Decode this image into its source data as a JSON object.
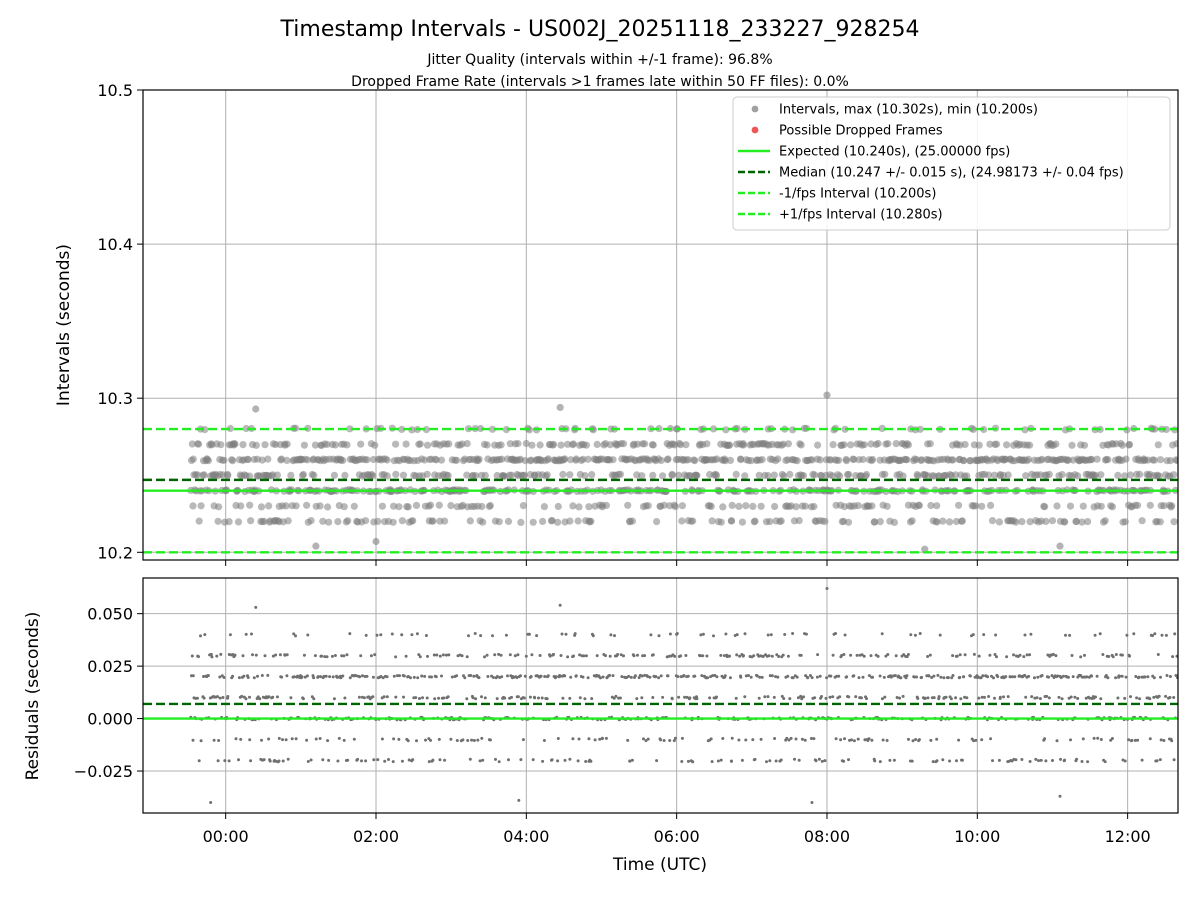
{
  "chart_data": [
    {
      "type": "scatter",
      "title": "Timestamp Intervals - US002J_20251118_233227_928254",
      "subtitle_lines": [
        "Jitter Quality (intervals within +/-1 frame): 96.8%",
        "Dropped Frame Rate (intervals >1 frames late within 50 FF files): 0.0%"
      ],
      "xlabel": "",
      "ylabel": "Intervals (seconds)",
      "ylim": [
        10.195,
        10.5
      ],
      "yticks": [
        10.2,
        10.3,
        10.4,
        10.5
      ],
      "ytick_labels": [
        "10.2",
        "10.3",
        "10.4",
        "10.5"
      ],
      "xlim_hours": [
        -1.1,
        12.67
      ],
      "xticks_hours": [
        0,
        2,
        4,
        6,
        8,
        10,
        12
      ],
      "grid": true,
      "legend_position": "top-right",
      "point_color": "#808080",
      "dropped_color": "#ff4040",
      "legend": [
        {
          "label": "Intervals, max (10.302s), min (10.200s)",
          "style": "marker",
          "color": "#a0a0a0"
        },
        {
          "label": "Possible Dropped Frames",
          "style": "marker",
          "color": "#ee5555"
        },
        {
          "label": "Expected (10.240s), (25.00000 fps)",
          "style": "solid",
          "color": "#22ee22"
        },
        {
          "label": "Median (10.247 +/- 0.015 s), (24.98173 +/- 0.04 fps)",
          "style": "dashed",
          "color": "#006400"
        },
        {
          "label": "-1/fps Interval (10.200s)",
          "style": "dashed",
          "color": "#22ee22"
        },
        {
          "label": "+1/fps Interval (10.280s)",
          "style": "dashed",
          "color": "#22ee22"
        }
      ],
      "reference_lines": [
        {
          "y": 10.24,
          "style": "solid",
          "color": "#22ee22"
        },
        {
          "y": 10.247,
          "style": "dashed",
          "color": "#006400"
        },
        {
          "y": 10.2,
          "style": "dashed",
          "color": "#22ee22"
        },
        {
          "y": 10.28,
          "style": "dashed",
          "color": "#22ee22"
        }
      ],
      "series": [
        {
          "x_range_hours": [
            -0.47,
            12.67
          ],
          "interval_levels": [
            10.22,
            10.23,
            10.24,
            10.25,
            10.26,
            10.27,
            10.28
          ],
          "level_weights": [
            0.1,
            0.1,
            0.2,
            0.15,
            0.25,
            0.14,
            0.06
          ],
          "outliers": [
            [
              0.4,
              10.293
            ],
            [
              4.45,
              10.294
            ],
            [
              8.0,
              10.302
            ],
            [
              1.2,
              10.204
            ],
            [
              11.1,
              10.204
            ],
            [
              9.3,
              10.202
            ],
            [
              2.0,
              10.207
            ]
          ]
        }
      ]
    },
    {
      "type": "scatter",
      "title": "",
      "xlabel": "Time (UTC)",
      "ylabel": "Residuals (seconds)",
      "ylim": [
        -0.045,
        0.067
      ],
      "yticks": [
        -0.025,
        0.0,
        0.025,
        0.05
      ],
      "ytick_labels": [
        "−0.025",
        "0.000",
        "0.025",
        "0.050"
      ],
      "xlim_hours": [
        -1.1,
        12.67
      ],
      "xticks_hours": [
        0,
        2,
        4,
        6,
        8,
        10,
        12
      ],
      "xtick_labels": [
        "00:00",
        "02:00",
        "04:00",
        "06:00",
        "08:00",
        "10:00",
        "12:00"
      ],
      "grid": true,
      "point_color": "#707070",
      "reference_lines": [
        {
          "y": 0.0,
          "style": "solid",
          "color": "#22ee22"
        },
        {
          "y": 0.007,
          "style": "dashed",
          "color": "#006400"
        }
      ],
      "series": [
        {
          "x_range_hours": [
            -0.47,
            12.67
          ],
          "residual_levels": [
            -0.02,
            -0.01,
            0.0,
            0.01,
            0.02,
            0.03,
            0.04
          ],
          "level_weights": [
            0.1,
            0.1,
            0.2,
            0.15,
            0.25,
            0.14,
            0.06
          ],
          "outliers": [
            [
              8.0,
              0.062
            ],
            [
              4.45,
              0.054
            ],
            [
              0.4,
              0.053
            ],
            [
              -0.2,
              -0.04
            ],
            [
              7.8,
              -0.04
            ],
            [
              11.1,
              -0.037
            ],
            [
              3.9,
              -0.039
            ]
          ]
        }
      ]
    }
  ]
}
